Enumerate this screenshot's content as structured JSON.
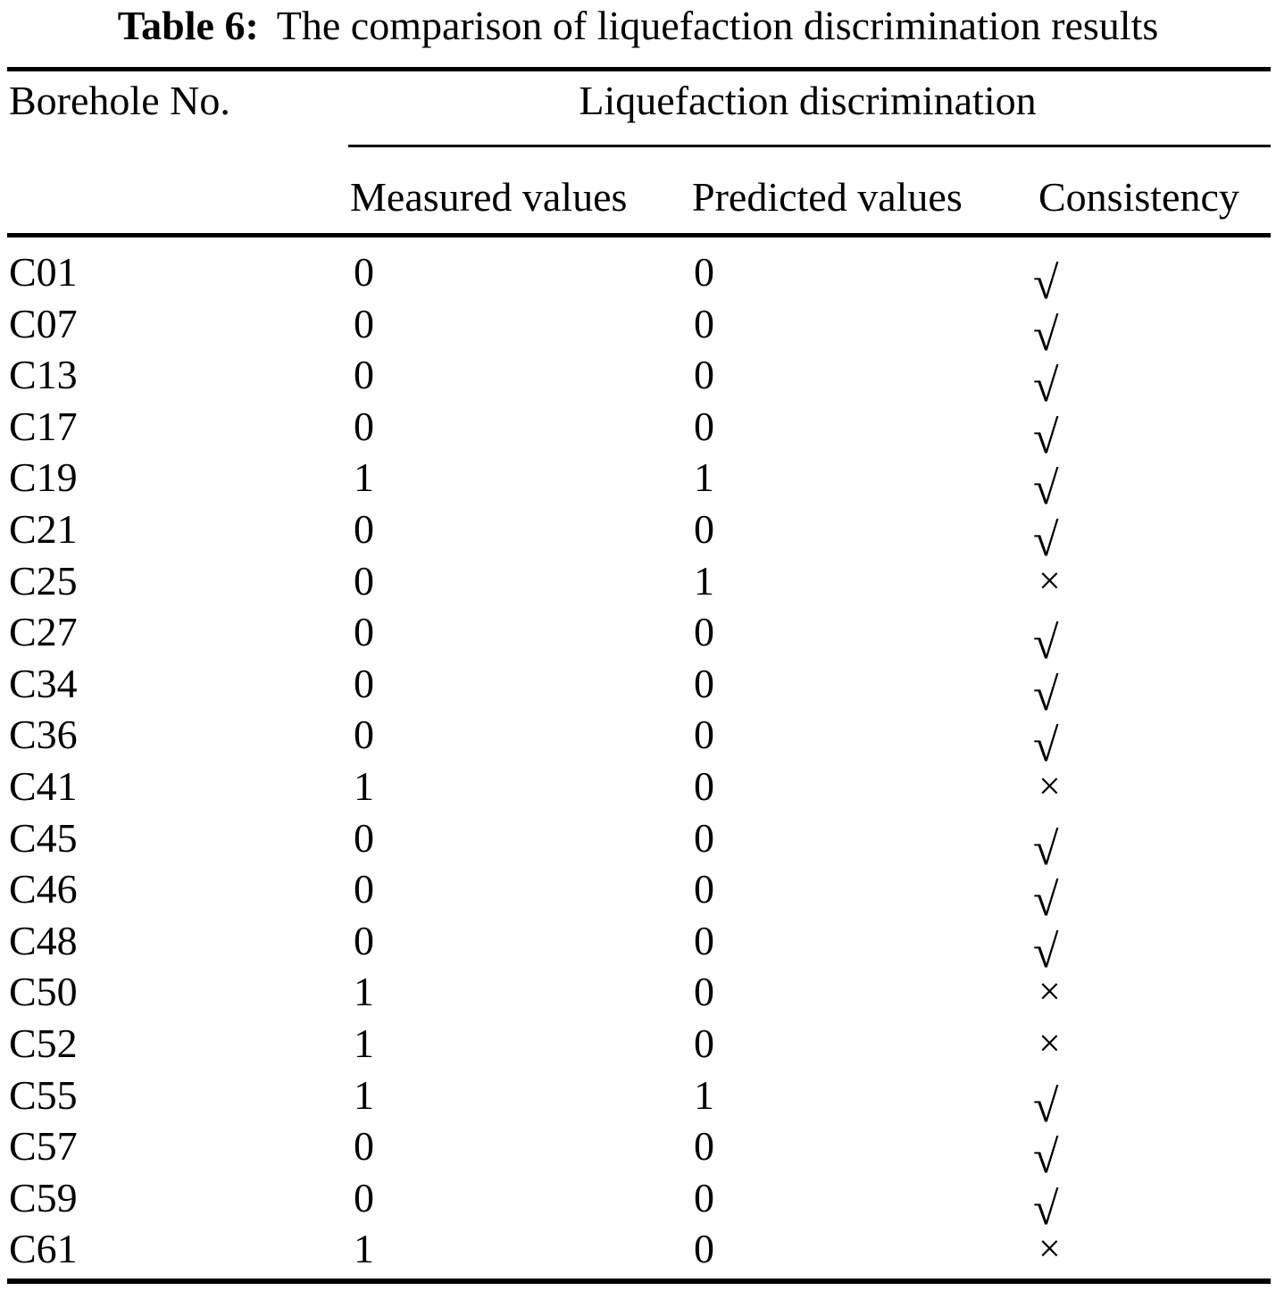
{
  "caption": {
    "label": "Table 6:",
    "text": "The comparison of liquefaction discrimination results"
  },
  "header": {
    "borehole": "Borehole No.",
    "group": "Liquefaction discrimination",
    "measured": "Measured values",
    "predicted": "Predicted values",
    "consistency": "Consistency"
  },
  "marks": {
    "check": "√",
    "cross": "×"
  },
  "rows": [
    {
      "borehole": "C01",
      "measured": "0",
      "predicted": "0",
      "consistency": "check"
    },
    {
      "borehole": "C07",
      "measured": "0",
      "predicted": "0",
      "consistency": "check"
    },
    {
      "borehole": "C13",
      "measured": "0",
      "predicted": "0",
      "consistency": "check"
    },
    {
      "borehole": "C17",
      "measured": "0",
      "predicted": "0",
      "consistency": "check"
    },
    {
      "borehole": "C19",
      "measured": "1",
      "predicted": "1",
      "consistency": "check"
    },
    {
      "borehole": "C21",
      "measured": "0",
      "predicted": "0",
      "consistency": "check"
    },
    {
      "borehole": "C25",
      "measured": "0",
      "predicted": "1",
      "consistency": "cross"
    },
    {
      "borehole": "C27",
      "measured": "0",
      "predicted": "0",
      "consistency": "check"
    },
    {
      "borehole": "C34",
      "measured": "0",
      "predicted": "0",
      "consistency": "check"
    },
    {
      "borehole": "C36",
      "measured": "0",
      "predicted": "0",
      "consistency": "check"
    },
    {
      "borehole": "C41",
      "measured": "1",
      "predicted": "0",
      "consistency": "cross"
    },
    {
      "borehole": "C45",
      "measured": "0",
      "predicted": "0",
      "consistency": "check"
    },
    {
      "borehole": "C46",
      "measured": "0",
      "predicted": "0",
      "consistency": "check"
    },
    {
      "borehole": "C48",
      "measured": "0",
      "predicted": "0",
      "consistency": "check"
    },
    {
      "borehole": "C50",
      "measured": "1",
      "predicted": "0",
      "consistency": "cross"
    },
    {
      "borehole": "C52",
      "measured": "1",
      "predicted": "0",
      "consistency": "cross"
    },
    {
      "borehole": "C55",
      "measured": "1",
      "predicted": "1",
      "consistency": "check"
    },
    {
      "borehole": "C57",
      "measured": "0",
      "predicted": "0",
      "consistency": "check"
    },
    {
      "borehole": "C59",
      "measured": "0",
      "predicted": "0",
      "consistency": "check"
    },
    {
      "borehole": "C61",
      "measured": "1",
      "predicted": "0",
      "consistency": "cross"
    }
  ],
  "colors": {
    "text": "#000000",
    "background": "#ffffff",
    "rule": "#000000"
  }
}
